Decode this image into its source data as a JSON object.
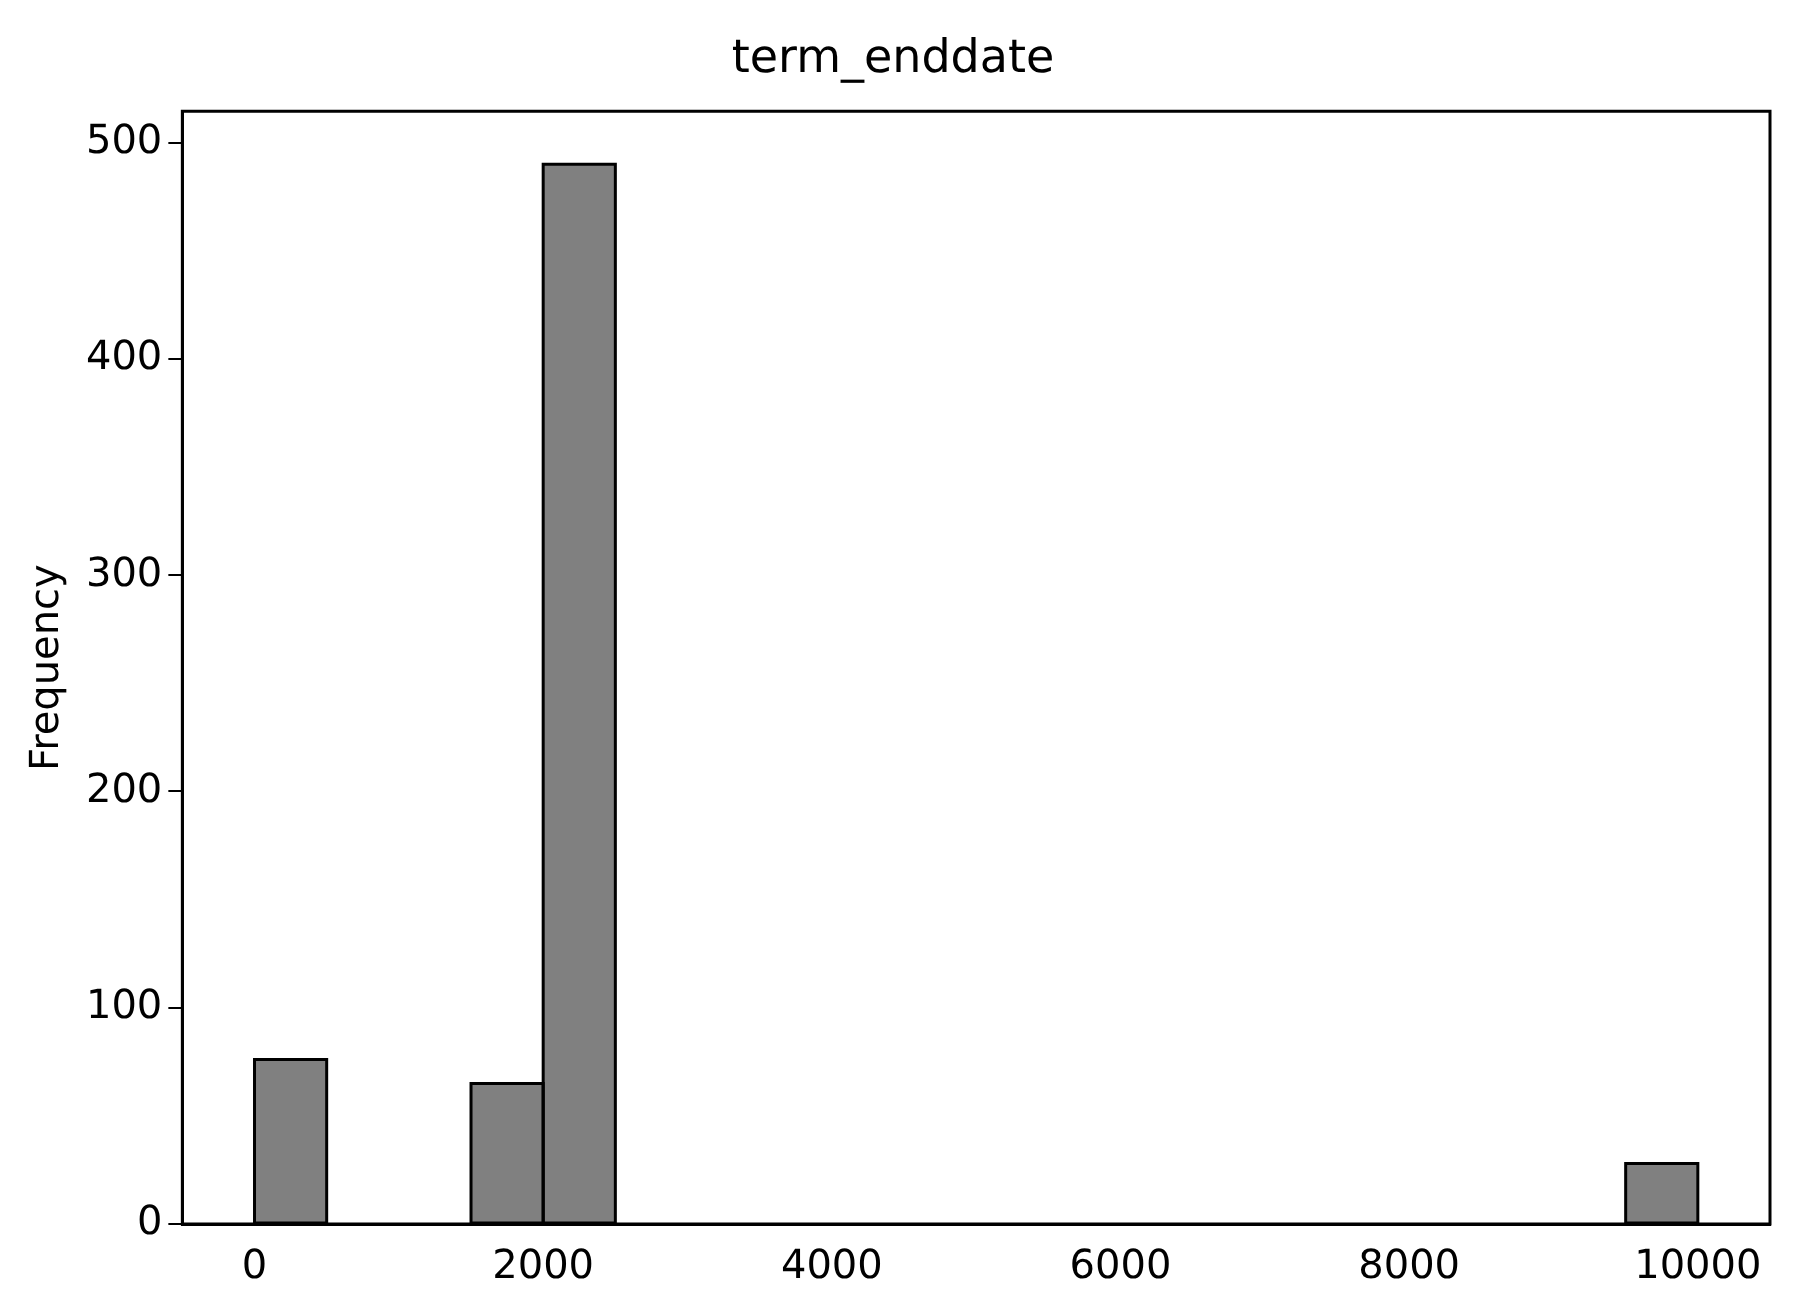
{
  "chart_data": {
    "type": "histogram",
    "title": "term_enddate",
    "ylabel": "Frequency",
    "bins": [
      0,
      500,
      1000,
      1500,
      2000,
      2500,
      3000,
      3500,
      4000,
      4500,
      5000,
      5500,
      6000,
      6500,
      7000,
      7500,
      8000,
      8500,
      9000,
      9500,
      10000
    ],
    "values": [
      76,
      0,
      0,
      65,
      490,
      0,
      0,
      0,
      0,
      0,
      0,
      0,
      0,
      0,
      0,
      0,
      0,
      0,
      0,
      28
    ],
    "color": "#808080",
    "xlim": [
      -500,
      10500
    ],
    "xticks": [
      0,
      2000,
      4000,
      6000,
      8000,
      10000
    ],
    "ylim": [
      0,
      514.5
    ],
    "yticks": [
      0,
      100,
      200,
      300,
      400,
      500
    ],
    "grid": false,
    "legend": false
  }
}
